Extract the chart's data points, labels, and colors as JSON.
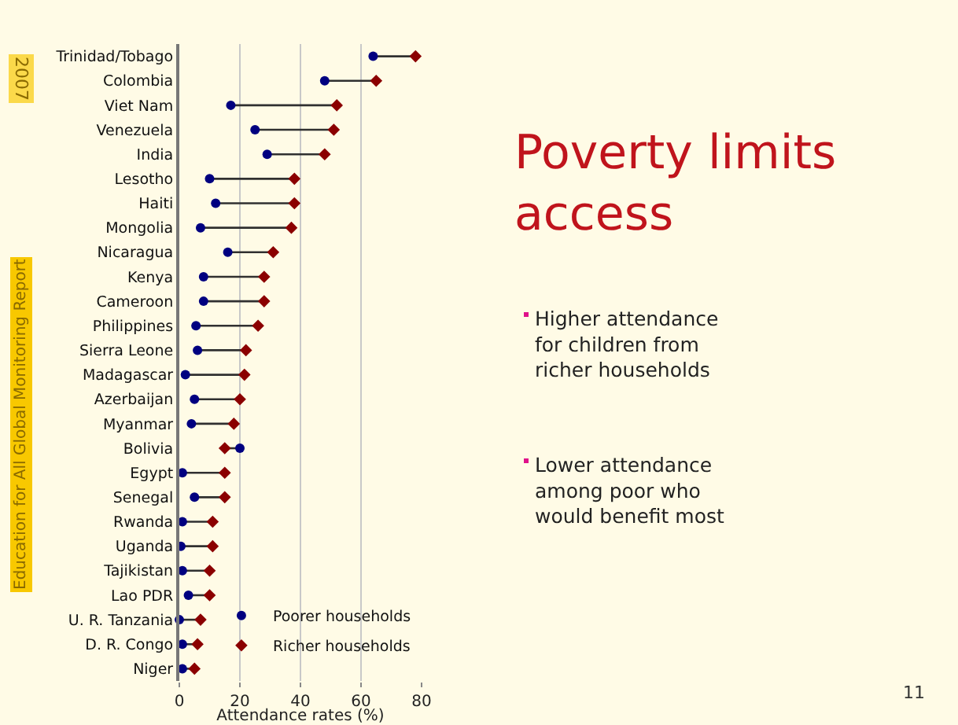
{
  "chart_data": {
    "type": "scatter",
    "title": "Poverty limits access",
    "xlabel": "Attendance rates (%)",
    "categories": [
      "Trinidad/Tobago",
      "Colombia",
      "Viet Nam",
      "Venezuela",
      "India",
      "Lesotho",
      "Haiti",
      "Mongolia",
      "Nicaragua",
      "Kenya",
      "Cameroon",
      "Philippines",
      "Sierra Leone",
      "Madagascar",
      "Azerbaijan",
      "Myanmar",
      "Bolivia",
      "Egypt",
      "Senegal",
      "Rwanda",
      "Uganda",
      "Tajikistan",
      "Lao PDR",
      "U. R. Tanzania",
      "D. R. Congo",
      "Niger"
    ],
    "orientation": "horizontal",
    "series": [
      {
        "name": "Poorer households",
        "color": "#000080",
        "marker": "circle",
        "values": [
          64,
          48,
          17,
          25,
          29,
          10,
          12,
          7,
          16,
          8,
          8,
          5.5,
          6,
          2,
          5,
          4,
          20,
          1,
          5,
          1,
          0.5,
          1,
          3,
          0,
          1,
          1
        ]
      },
      {
        "name": "Richer households",
        "color": "#8b0000",
        "marker": "diamond",
        "values": [
          78,
          65,
          52,
          51,
          48,
          38,
          38,
          37,
          31,
          28,
          28,
          26,
          22,
          21.5,
          20,
          18,
          15,
          15,
          15,
          11,
          11,
          10,
          10,
          7,
          6,
          5
        ]
      }
    ],
    "xlim": [
      0,
      80
    ],
    "xticks": [
      0,
      20,
      40,
      60,
      80
    ],
    "grid": "x",
    "legend": "bottom right",
    "annotations": [
      "Higher attendance for children from richer households",
      "Lower attendance among poor who would benefit most",
      "11",
      "Education for All Global Monitoring Report",
      "2007"
    ]
  }
}
